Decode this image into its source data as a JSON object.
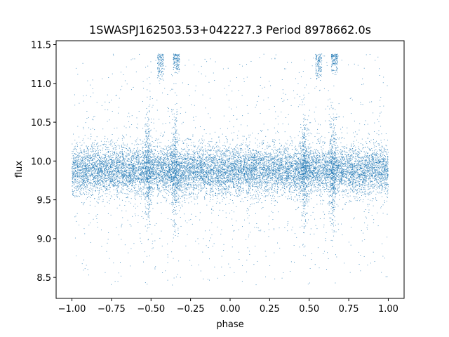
{
  "chart_data": {
    "type": "scatter",
    "title": "1SWASPJ162503.53+042227.3 Period 8978662.0s",
    "xlabel": "phase",
    "ylabel": "flux",
    "xlim": [
      -1.1,
      1.1
    ],
    "ylim": [
      8.23,
      11.55
    ],
    "x_ticks": [
      -1.0,
      -0.75,
      -0.5,
      -0.25,
      0.0,
      0.25,
      0.5,
      0.75,
      1.0
    ],
    "x_tick_labels": [
      "−1.00",
      "−0.75",
      "−0.50",
      "−0.25",
      "0.00",
      "0.25",
      "0.50",
      "0.75",
      "1.00"
    ],
    "y_ticks": [
      8.5,
      9.0,
      9.5,
      10.0,
      10.5,
      11.0,
      11.5
    ],
    "y_tick_labels": [
      "8.5",
      "9.0",
      "9.5",
      "10.0",
      "10.5",
      "11.0",
      "11.5"
    ],
    "grid": false,
    "marker_color": "#1f77b4",
    "series": [
      {
        "x_range": [
          -1.0,
          1.0
        ],
        "core_center": 9.88,
        "core_spread": 0.15,
        "outlier_range": [
          8.4,
          11.38
        ],
        "dense_columns": [
          -0.52,
          -0.35,
          0.47,
          0.65
        ],
        "saturated_clusters": [
          {
            "x": -0.44,
            "y": [
              11.0,
              11.38
            ]
          },
          {
            "x": -0.34,
            "y": [
              11.1,
              11.38
            ]
          },
          {
            "x": 0.56,
            "y": [
              11.0,
              11.38
            ]
          },
          {
            "x": 0.66,
            "y": [
              11.1,
              11.38
            ]
          }
        ],
        "sample_points": [
          [
            -1.0,
            9.9
          ],
          [
            -0.9,
            9.8
          ],
          [
            -0.75,
            9.95
          ],
          [
            -0.6,
            9.85
          ],
          [
            -0.5,
            10.4
          ],
          [
            -0.25,
            9.9
          ],
          [
            0.0,
            9.88
          ],
          [
            0.25,
            9.9
          ],
          [
            0.5,
            10.4
          ],
          [
            0.75,
            9.85
          ],
          [
            1.0,
            9.9
          ]
        ]
      }
    ]
  }
}
